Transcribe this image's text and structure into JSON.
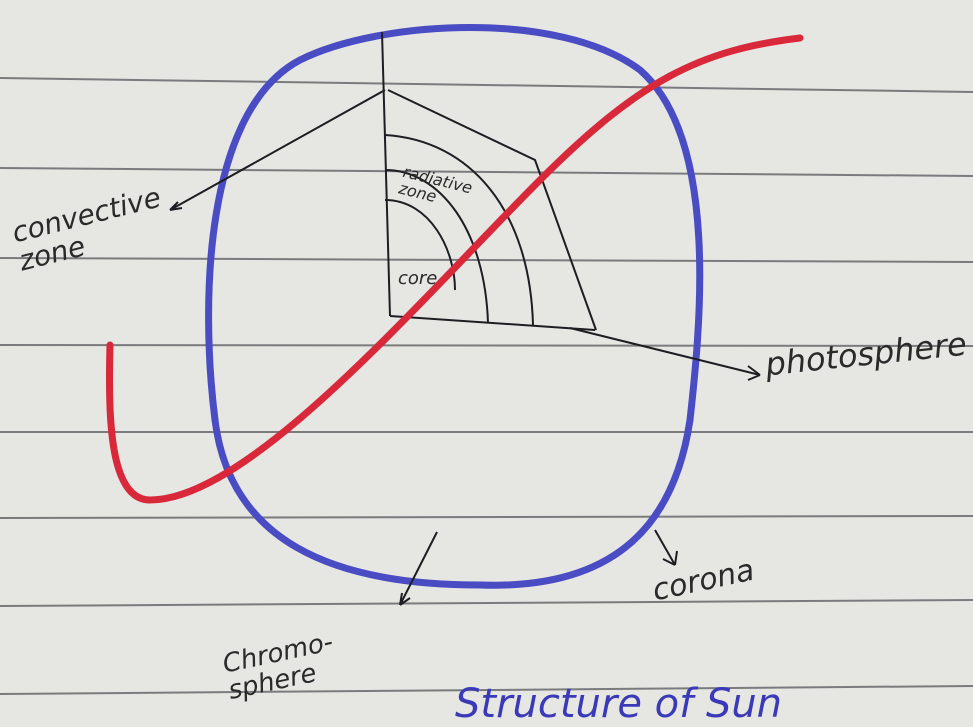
{
  "title": "Structure of Sun",
  "labels": {
    "convective_zone": "convective\nzone",
    "radiative_zone": "radiative\nzone",
    "core": "core",
    "photosphere": "photosphere",
    "corona": "corona",
    "chromosphere": "Chromo-\nsphere"
  }
}
